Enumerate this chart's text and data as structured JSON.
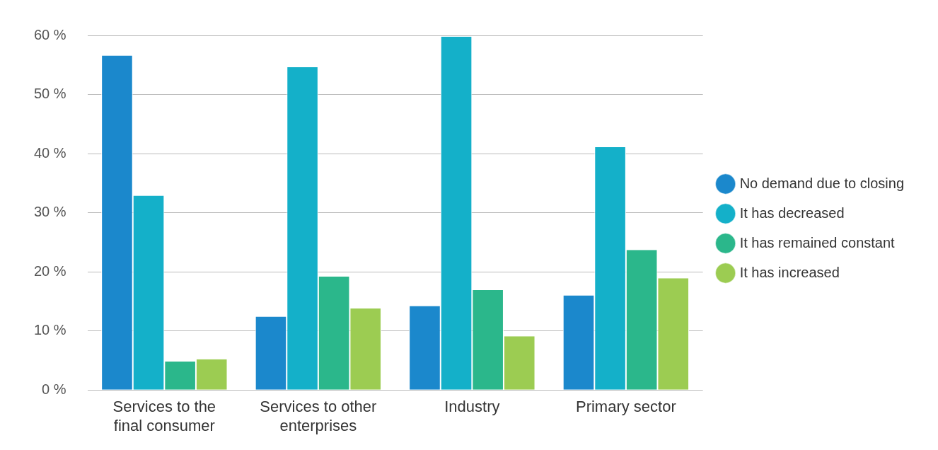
{
  "chart_data": {
    "type": "bar",
    "categories": [
      "Services to the final consumer",
      "Services to other enterprises",
      "Industry",
      "Primary sector"
    ],
    "series": [
      {
        "name": "No demand due to closing",
        "color": "#1b88cc",
        "values": [
          56.6,
          12.4,
          14.2,
          16.0
        ]
      },
      {
        "name": "It has decreased",
        "color": "#14b0c9",
        "values": [
          32.9,
          54.6,
          59.8,
          41.1
        ]
      },
      {
        "name": "It has remained constant",
        "color": "#2bb78b",
        "values": [
          4.8,
          19.2,
          16.9,
          23.7
        ]
      },
      {
        "name": "It has increased",
        "color": "#9ccc52",
        "values": [
          5.2,
          13.8,
          9.1,
          18.9
        ]
      }
    ],
    "ylim": [
      0,
      60
    ],
    "yticks": [
      {
        "value": 0,
        "label": "0 %"
      },
      {
        "value": 10,
        "label": "10 %"
      },
      {
        "value": 20,
        "label": "20 %"
      },
      {
        "value": 30,
        "label": "30 %"
      },
      {
        "value": 40,
        "label": "40 %"
      },
      {
        "value": 50,
        "label": "50 %"
      },
      {
        "value": 60,
        "label": "60 %"
      }
    ],
    "grid": "y",
    "legend": "right",
    "marker": "circle"
  }
}
